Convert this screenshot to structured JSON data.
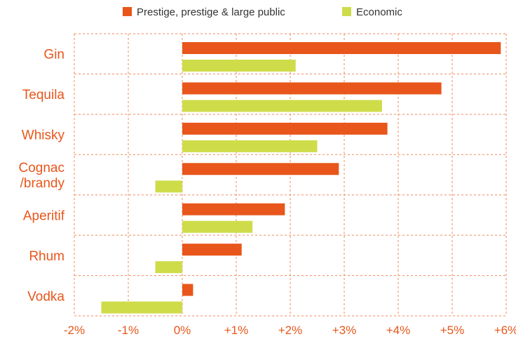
{
  "chart_data": {
    "type": "bar",
    "orientation": "horizontal",
    "categories": [
      "Gin",
      "Tequila",
      "Whisky",
      "Cognac\n/brandy",
      "Aperitif",
      "Rhum",
      "Vodka"
    ],
    "series": [
      {
        "name": "Prestige, prestige & large public",
        "color": "#e8561b",
        "values": [
          5.9,
          4.8,
          3.8,
          2.9,
          1.9,
          1.1,
          0.2
        ]
      },
      {
        "name": "Economic",
        "color": "#cfdc4a",
        "values": [
          2.1,
          3.7,
          2.5,
          -0.5,
          1.3,
          -0.5,
          -1.5
        ]
      }
    ],
    "xlim": [
      -2,
      6
    ],
    "xticks": [
      "-2%",
      "-1%",
      "0%",
      "+1%",
      "+2%",
      "+3%",
      "+4%",
      "+5%",
      "+6%"
    ],
    "grid": true,
    "legend_position": "top",
    "grid_color": "#f08a5d"
  }
}
